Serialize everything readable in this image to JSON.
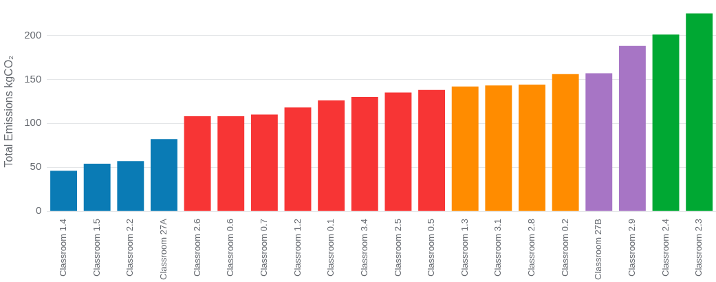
{
  "chart_data": {
    "type": "bar",
    "ylabel": "Total Emissions kgCO₂",
    "categories": [
      "Classroom 1.4",
      "Classroom 1.5",
      "Classroom 2.2",
      "Classroom 27A",
      "Classroom 2.6",
      "Classroom 0.6",
      "Classroom 0.7",
      "Classroom 1.2",
      "Classroom 0.1",
      "Classroom 3.4",
      "Classroom 2.5",
      "Classroom 0.5",
      "Classroom 1.3",
      "Classroom 3.1",
      "Classroom 2.8",
      "Classroom 0.2",
      "Classroom 27B",
      "Classroom 2.9",
      "Classroom 2.4",
      "Classroom 2.3"
    ],
    "values": [
      46,
      54,
      57,
      82,
      108,
      108,
      110,
      118,
      126,
      130,
      135,
      138,
      142,
      143,
      144,
      156,
      157,
      188,
      201,
      225
    ],
    "colors": [
      "#0a7bb5",
      "#0a7bb5",
      "#0a7bb5",
      "#0a7bb5",
      "#f73535",
      "#f73535",
      "#f73535",
      "#f73535",
      "#f73535",
      "#f73535",
      "#f73535",
      "#f73535",
      "#ff8c00",
      "#ff8c00",
      "#ff8c00",
      "#ff8c00",
      "#a775c5",
      "#a775c5",
      "#00a833",
      "#00a833"
    ],
    "ylim": [
      0,
      227
    ],
    "yticks": [
      0,
      50,
      100,
      150,
      200
    ],
    "grid": "y",
    "legend": false
  }
}
